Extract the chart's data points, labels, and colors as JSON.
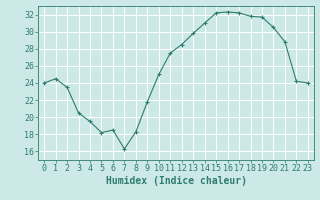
{
  "x": [
    0,
    1,
    2,
    3,
    4,
    5,
    6,
    7,
    8,
    9,
    10,
    11,
    12,
    13,
    14,
    15,
    16,
    17,
    18,
    19,
    20,
    21,
    22,
    23
  ],
  "y": [
    24,
    24.5,
    23.5,
    20.5,
    19.5,
    18.2,
    18.5,
    16.3,
    18.3,
    21.8,
    25.0,
    27.5,
    28.5,
    29.8,
    31.0,
    32.2,
    32.3,
    32.2,
    31.8,
    31.7,
    30.5,
    28.8,
    24.2,
    24.0
  ],
  "line_color": "#2e7d6e",
  "bg_color": "#cce8e7",
  "grid_color": "#ffffff",
  "xlabel": "Humidex (Indice chaleur)",
  "ylim": [
    15,
    33
  ],
  "xlim": [
    -0.5,
    23.5
  ],
  "yticks": [
    16,
    18,
    20,
    22,
    24,
    26,
    28,
    30,
    32
  ],
  "xticks": [
    0,
    1,
    2,
    3,
    4,
    5,
    6,
    7,
    8,
    9,
    10,
    11,
    12,
    13,
    14,
    15,
    16,
    17,
    18,
    19,
    20,
    21,
    22,
    23
  ],
  "xlabel_fontsize": 7,
  "tick_fontsize": 6
}
